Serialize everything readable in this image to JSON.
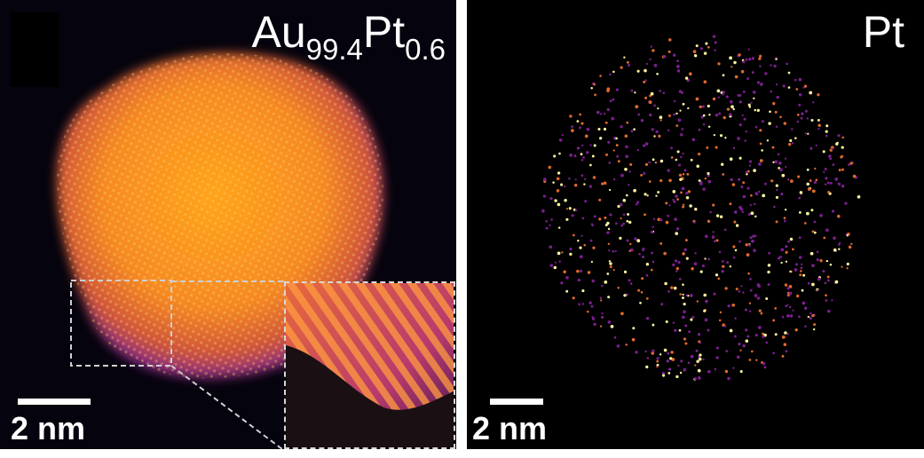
{
  "panels": {
    "left": {
      "title_base1": "Au",
      "title_sub1": "99.4",
      "title_base2": "Pt",
      "title_sub2": "0.6",
      "scale_label": "2 nm"
    },
    "right": {
      "title": "Pt",
      "scale_label": "2 nm"
    }
  },
  "colors": {
    "background": "#05030d",
    "particle_core": "#f59a1e",
    "particle_edge": "#6a1fa0",
    "dot_yellow": "#fff4a0",
    "dot_orange": "#e06a2c",
    "dot_purple": "#7a1f8e"
  }
}
